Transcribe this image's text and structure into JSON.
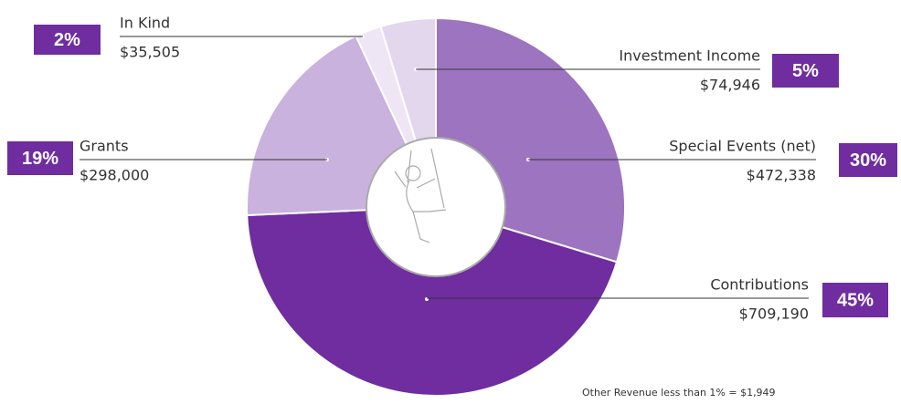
{
  "chart_data": {
    "type": "donut",
    "categories": [
      "Special Events (net)",
      "Contributions",
      "Grants",
      "In Kind",
      "Investment Income"
    ],
    "values": [
      472338,
      709190,
      298000,
      35505,
      74946
    ],
    "value_labels": [
      "$472,338",
      "$709,190",
      "$298,000",
      "$35,505",
      "$74,946"
    ],
    "percent_labels": [
      "30%",
      "45%",
      "19%",
      "2%",
      "5%"
    ],
    "colors": [
      "#9c74c0",
      "#6f2da0",
      "#c9b2dd",
      "#eee6f4",
      "#e3d7ee"
    ],
    "badge_color": "#6f2da0",
    "note": "Other Revenue less than 1% = $1,949"
  }
}
